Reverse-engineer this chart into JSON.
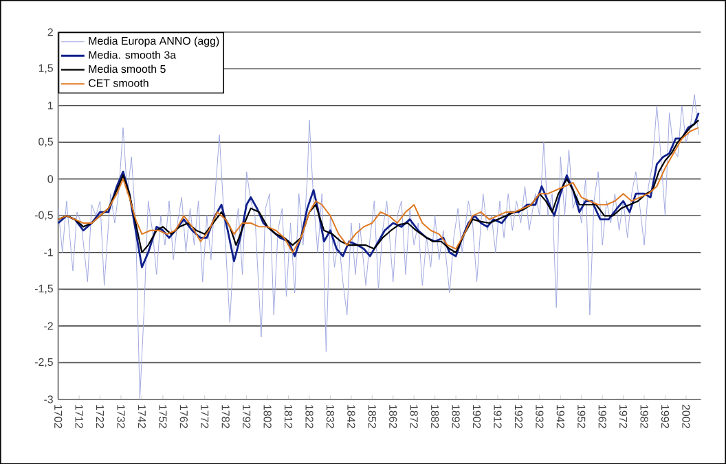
{
  "chart_data": {
    "type": "line",
    "xlim": [
      1702,
      2009
    ],
    "ylim": [
      -3,
      2
    ],
    "xticks": [
      1702,
      1712,
      1722,
      1732,
      1742,
      1752,
      1762,
      1772,
      1782,
      1792,
      1802,
      1812,
      1822,
      1832,
      1842,
      1852,
      1862,
      1872,
      1882,
      1892,
      1902,
      1912,
      1922,
      1932,
      1942,
      1952,
      1962,
      1972,
      1982,
      1992,
      2002
    ],
    "yticks": [
      {
        "value": -3,
        "label": "-3"
      },
      {
        "value": -2.5,
        "label": "-2,5"
      },
      {
        "value": -2,
        "label": "-2"
      },
      {
        "value": -1.5,
        "label": "-1,5"
      },
      {
        "value": -1,
        "label": "-1"
      },
      {
        "value": -0.5,
        "label": "-0,5"
      },
      {
        "value": 0,
        "label": "0"
      },
      {
        "value": 0.5,
        "label": "0,5"
      },
      {
        "value": 1,
        "label": "1"
      },
      {
        "value": 1.5,
        "label": "1,5"
      },
      {
        "value": 2,
        "label": "2"
      }
    ],
    "grid": "y",
    "legend": "top left",
    "series": [
      {
        "name": "Media Europa ANNO (agg)",
        "color": "#a0a8e0",
        "x": [
          1702,
          1704,
          1706,
          1709,
          1711,
          1713,
          1716,
          1718,
          1720,
          1722,
          1724,
          1727,
          1729,
          1731,
          1733,
          1735,
          1737,
          1739,
          1741,
          1743,
          1745,
          1747,
          1749,
          1751,
          1753,
          1755,
          1757,
          1759,
          1761,
          1763,
          1765,
          1767,
          1769,
          1771,
          1773,
          1775,
          1777,
          1779,
          1781,
          1784,
          1786,
          1788,
          1790,
          1792,
          1794,
          1796,
          1799,
          1801,
          1803,
          1805,
          1807,
          1809,
          1811,
          1813,
          1815,
          1817,
          1819,
          1821,
          1822,
          1824,
          1826,
          1828,
          1830,
          1832,
          1834,
          1836,
          1838,
          1840,
          1842,
          1844,
          1846,
          1849,
          1851,
          1853,
          1855,
          1857,
          1859,
          1862,
          1864,
          1866,
          1868,
          1870,
          1872,
          1874,
          1876,
          1878,
          1880,
          1882,
          1884,
          1886,
          1889,
          1891,
          1893,
          1895,
          1898,
          1900,
          1902,
          1905,
          1907,
          1909,
          1911,
          1913,
          1915,
          1917,
          1919,
          1921,
          1923,
          1925,
          1927,
          1930,
          1932,
          1934,
          1936,
          1938,
          1940,
          1942,
          1944,
          1946,
          1948,
          1950,
          1952,
          1954,
          1956,
          1958,
          1960,
          1962,
          1964,
          1966,
          1968,
          1970,
          1972,
          1974,
          1976,
          1978,
          1980,
          1982,
          1984,
          1986,
          1988,
          1990,
          1992,
          1994,
          1996,
          1998,
          2000,
          2002,
          2004,
          2006,
          2008
        ],
        "values": [
          -0.4,
          -1.0,
          -0.3,
          -1.25,
          -0.45,
          -0.6,
          -1.4,
          -0.35,
          -0.5,
          -0.3,
          -1.45,
          -0.2,
          -0.6,
          -0.15,
          0.7,
          -0.2,
          0.3,
          -0.6,
          -3.0,
          -1.8,
          -0.3,
          -0.7,
          -1.3,
          -0.5,
          -0.9,
          -0.3,
          -1.1,
          -0.6,
          -0.25,
          -1.0,
          -0.4,
          -0.9,
          -0.3,
          -1.4,
          -0.5,
          -1.1,
          -0.2,
          0.6,
          -0.4,
          -1.95,
          -0.9,
          -0.4,
          -1.3,
          0.1,
          -0.3,
          -0.5,
          -2.15,
          -0.4,
          -0.2,
          -1.85,
          -0.7,
          -0.4,
          -1.6,
          -0.6,
          -1.55,
          -0.2,
          -0.9,
          0.0,
          0.8,
          -0.3,
          -1.0,
          -0.2,
          -2.35,
          -0.5,
          -1.2,
          -0.8,
          -1.4,
          -1.85,
          -0.6,
          -1.3,
          -0.6,
          -1.45,
          -0.8,
          -0.3,
          -1.5,
          -0.7,
          -0.3,
          -1.4,
          -0.5,
          -0.3,
          -1.3,
          -0.4,
          -0.9,
          -0.6,
          -1.45,
          -0.8,
          -1.2,
          -0.5,
          -1.1,
          -0.7,
          -1.55,
          -0.8,
          -0.4,
          -1.0,
          -0.3,
          -0.6,
          -1.4,
          -0.2,
          -0.7,
          -0.5,
          -1.0,
          -0.3,
          -0.8,
          -0.2,
          -0.7,
          -0.3,
          -0.6,
          -0.1,
          -0.7,
          -0.2,
          -0.5,
          0.5,
          -0.5,
          -0.2,
          -1.75,
          0.3,
          -0.5,
          0.4,
          -0.4,
          -0.2,
          -0.6,
          0.0,
          -1.85,
          -0.3,
          0.1,
          -0.9,
          -0.3,
          -0.6,
          -0.2,
          -0.7,
          -0.3,
          -0.8,
          -0.2,
          0.1,
          -0.4,
          -0.9,
          -0.1,
          0.2,
          1.0,
          0.3,
          -0.5,
          0.9,
          0.4,
          0.3,
          1.0,
          0.5,
          0.7,
          1.15,
          0.6
        ]
      },
      {
        "name": "Media. smooth 3a",
        "color": "#10208c",
        "x": [
          1702,
          1706,
          1710,
          1714,
          1718,
          1722,
          1726,
          1730,
          1733,
          1736,
          1739,
          1742,
          1745,
          1749,
          1752,
          1755,
          1758,
          1762,
          1766,
          1770,
          1773,
          1777,
          1780,
          1783,
          1786,
          1789,
          1792,
          1794,
          1797,
          1800,
          1804,
          1808,
          1812,
          1815,
          1818,
          1821,
          1824,
          1826,
          1829,
          1832,
          1835,
          1838,
          1841,
          1845,
          1848,
          1851,
          1855,
          1858,
          1862,
          1866,
          1870,
          1874,
          1878,
          1882,
          1886,
          1889,
          1892,
          1895,
          1898,
          1901,
          1904,
          1907,
          1910,
          1914,
          1918,
          1922,
          1926,
          1930,
          1933,
          1936,
          1939,
          1942,
          1945,
          1948,
          1951,
          1954,
          1957,
          1961,
          1965,
          1969,
          1972,
          1975,
          1978,
          1982,
          1985,
          1988,
          1991,
          1994,
          1997,
          2000,
          2003,
          2006,
          2008
        ],
        "values": [
          -0.6,
          -0.5,
          -0.55,
          -0.7,
          -0.6,
          -0.45,
          -0.45,
          -0.1,
          0.1,
          -0.2,
          -0.7,
          -1.2,
          -1.0,
          -0.65,
          -0.7,
          -0.8,
          -0.7,
          -0.55,
          -0.7,
          -0.8,
          -0.8,
          -0.5,
          -0.35,
          -0.7,
          -1.12,
          -0.8,
          -0.35,
          -0.25,
          -0.4,
          -0.6,
          -0.7,
          -0.8,
          -0.85,
          -1.05,
          -0.8,
          -0.4,
          -0.15,
          -0.4,
          -0.85,
          -0.7,
          -0.95,
          -1.05,
          -0.85,
          -0.9,
          -0.95,
          -1.05,
          -0.85,
          -0.7,
          -0.6,
          -0.65,
          -0.55,
          -0.7,
          -0.8,
          -0.85,
          -0.8,
          -1.0,
          -1.05,
          -0.8,
          -0.6,
          -0.5,
          -0.6,
          -0.65,
          -0.55,
          -0.6,
          -0.45,
          -0.45,
          -0.35,
          -0.35,
          -0.1,
          -0.3,
          -0.5,
          -0.2,
          0.05,
          -0.15,
          -0.45,
          -0.3,
          -0.3,
          -0.55,
          -0.55,
          -0.4,
          -0.3,
          -0.45,
          -0.2,
          -0.2,
          -0.25,
          0.2,
          0.3,
          0.35,
          0.55,
          0.55,
          0.7,
          0.75,
          0.9
        ]
      },
      {
        "name": "Media smooth 5",
        "color": "#000000",
        "x": [
          1702,
          1706,
          1710,
          1714,
          1718,
          1722,
          1726,
          1730,
          1733,
          1736,
          1739,
          1742,
          1745,
          1749,
          1752,
          1756,
          1760,
          1764,
          1768,
          1772,
          1776,
          1780,
          1784,
          1787,
          1791,
          1794,
          1798,
          1802,
          1806,
          1810,
          1814,
          1818,
          1822,
          1825,
          1829,
          1833,
          1837,
          1841,
          1845,
          1849,
          1853,
          1857,
          1861,
          1865,
          1869,
          1873,
          1877,
          1881,
          1885,
          1889,
          1892,
          1896,
          1900,
          1904,
          1908,
          1912,
          1916,
          1920,
          1924,
          1928,
          1932,
          1935,
          1938,
          1941,
          1945,
          1948,
          1951,
          1955,
          1959,
          1963,
          1967,
          1971,
          1975,
          1979,
          1983,
          1986,
          1989,
          1992,
          1995,
          1998,
          2001,
          2004,
          2008
        ],
        "values": [
          -0.55,
          -0.5,
          -0.55,
          -0.65,
          -0.6,
          -0.5,
          -0.4,
          -0.15,
          0.05,
          -0.2,
          -0.6,
          -1.0,
          -0.9,
          -0.7,
          -0.65,
          -0.75,
          -0.65,
          -0.6,
          -0.7,
          -0.75,
          -0.6,
          -0.45,
          -0.65,
          -0.9,
          -0.6,
          -0.4,
          -0.45,
          -0.65,
          -0.75,
          -0.8,
          -0.9,
          -0.8,
          -0.45,
          -0.35,
          -0.7,
          -0.75,
          -0.85,
          -0.9,
          -0.9,
          -0.9,
          -0.95,
          -0.8,
          -0.7,
          -0.62,
          -0.6,
          -0.7,
          -0.78,
          -0.85,
          -0.85,
          -0.95,
          -1.0,
          -0.75,
          -0.55,
          -0.58,
          -0.6,
          -0.55,
          -0.5,
          -0.45,
          -0.42,
          -0.35,
          -0.2,
          -0.3,
          -0.45,
          -0.2,
          0.0,
          -0.15,
          -0.35,
          -0.35,
          -0.35,
          -0.5,
          -0.5,
          -0.4,
          -0.35,
          -0.3,
          -0.2,
          -0.15,
          0.1,
          0.25,
          0.35,
          0.5,
          0.6,
          0.7,
          0.8
        ]
      },
      {
        "name": "CET smooth",
        "color": "#e07820",
        "x": [
          1702,
          1706,
          1710,
          1714,
          1718,
          1722,
          1726,
          1730,
          1733,
          1736,
          1739,
          1742,
          1746,
          1750,
          1754,
          1758,
          1762,
          1766,
          1770,
          1774,
          1778,
          1782,
          1786,
          1790,
          1794,
          1798,
          1802,
          1806,
          1810,
          1814,
          1818,
          1822,
          1825,
          1828,
          1832,
          1836,
          1840,
          1844,
          1848,
          1852,
          1856,
          1860,
          1864,
          1868,
          1872,
          1876,
          1880,
          1884,
          1888,
          1892,
          1896,
          1900,
          1904,
          1908,
          1912,
          1916,
          1920,
          1924,
          1928,
          1932,
          1936,
          1940,
          1944,
          1948,
          1952,
          1956,
          1960,
          1964,
          1968,
          1972,
          1976,
          1980,
          1984,
          1988,
          1992,
          1996,
          2000,
          2004,
          2008
        ],
        "values": [
          -0.55,
          -0.5,
          -0.55,
          -0.6,
          -0.6,
          -0.5,
          -0.4,
          -0.2,
          0.0,
          -0.25,
          -0.55,
          -0.75,
          -0.7,
          -0.7,
          -0.75,
          -0.7,
          -0.5,
          -0.65,
          -0.85,
          -0.7,
          -0.45,
          -0.55,
          -0.75,
          -0.6,
          -0.6,
          -0.65,
          -0.65,
          -0.7,
          -0.8,
          -1.0,
          -0.8,
          -0.45,
          -0.3,
          -0.35,
          -0.5,
          -0.75,
          -0.9,
          -0.75,
          -0.65,
          -0.6,
          -0.45,
          -0.5,
          -0.6,
          -0.45,
          -0.35,
          -0.6,
          -0.7,
          -0.75,
          -0.9,
          -0.95,
          -0.75,
          -0.5,
          -0.45,
          -0.55,
          -0.5,
          -0.45,
          -0.45,
          -0.4,
          -0.35,
          -0.2,
          -0.2,
          -0.15,
          -0.1,
          -0.05,
          -0.25,
          -0.3,
          -0.35,
          -0.35,
          -0.3,
          -0.2,
          -0.3,
          -0.25,
          -0.2,
          -0.1,
          0.15,
          0.35,
          0.55,
          0.65,
          0.7
        ]
      }
    ]
  }
}
